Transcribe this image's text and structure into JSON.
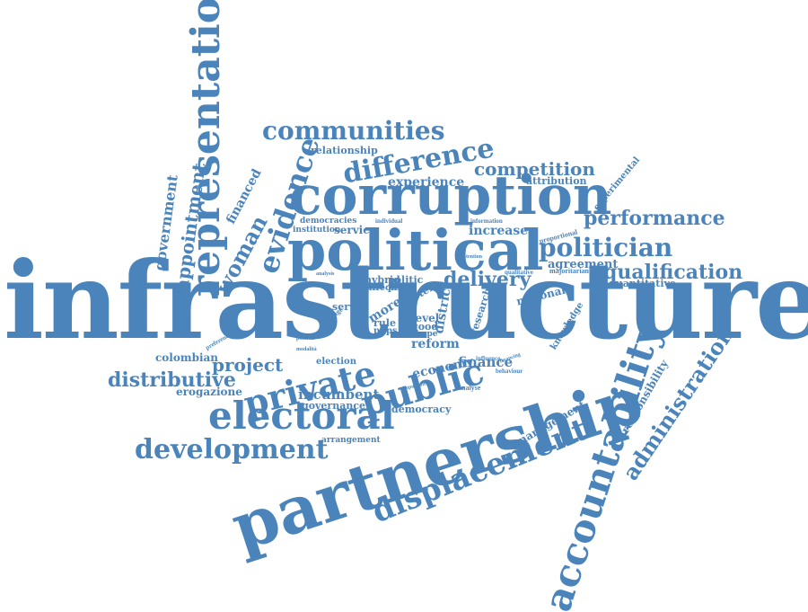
{
  "accent_color": "#4a84bb",
  "words": [
    "infrastructure",
    "partnership",
    "corruption",
    "political",
    "representation",
    "accountability",
    "electoral",
    "public",
    "private",
    "displacement",
    "difference",
    "evidence",
    "communities",
    "development",
    "politician",
    "performance",
    "qualification",
    "competition",
    "administration",
    "distributive",
    "woman",
    "appointment",
    "government",
    "project",
    "delivery",
    "increase",
    "experience",
    "agreement",
    "responsibility",
    "incumbent",
    "finance",
    "reform",
    "economy",
    "management",
    "colombian",
    "erogazione",
    "financed",
    "relationship",
    "attribution",
    "experimental",
    "quantitative",
    "national",
    "knowledge",
    "governance",
    "democracy",
    "arrangement",
    "servizi",
    "service",
    "election",
    "district",
    "level",
    "research",
    "more",
    "hybrid",
    "politic",
    "voter",
    "affect",
    "pfias",
    "rule",
    "ppps",
    "good",
    "shape",
    "democracies",
    "institution",
    "individual",
    "information",
    "intention",
    "majoritarian",
    "proportional",
    "qualitative",
    "preference",
    "change",
    "behaviour",
    "analyse",
    "influence",
    "financing",
    "important",
    "analysis",
    "political",
    "modalità"
  ]
}
